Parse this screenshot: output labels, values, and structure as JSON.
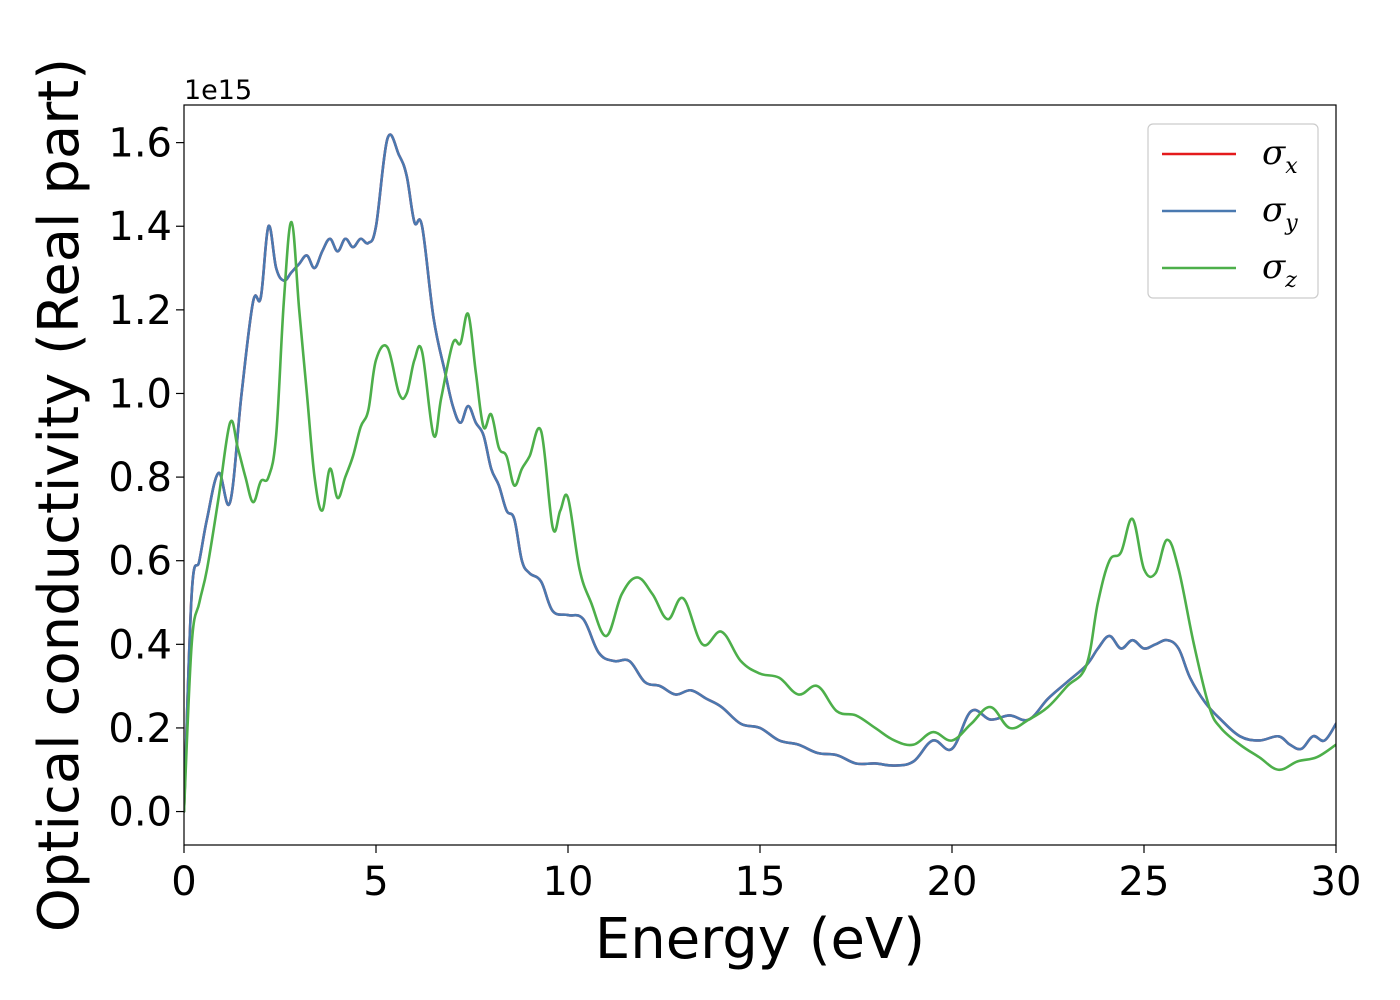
{
  "chart_data": {
    "type": "line",
    "xlabel": "Energy (eV)",
    "ylabel": "Optical conductivity (Real part)",
    "y_offset_label": "1e15",
    "y_scale": 1000000000000000.0,
    "xlim": [
      0,
      30
    ],
    "ylim": [
      -0.08,
      1.69
    ],
    "xticks": [
      0,
      5,
      10,
      15,
      20,
      25,
      30
    ],
    "xtick_labels": [
      "0",
      "5",
      "10",
      "15",
      "20",
      "25",
      "30"
    ],
    "yticks": [
      0.0,
      0.2,
      0.4,
      0.6,
      0.8,
      1.0,
      1.2,
      1.4,
      1.6
    ],
    "ytick_labels": [
      "0.0",
      "0.2",
      "0.4",
      "0.6",
      "0.8",
      "1.0",
      "1.2",
      "1.4",
      "1.6"
    ],
    "grid": false,
    "legend_position": "top-right",
    "series": [
      {
        "name": "σx",
        "legend_base": "σ",
        "legend_sub": "x",
        "color": "#e41a1c",
        "x": [
          0,
          0.2,
          0.4,
          0.6,
          0.9,
          1.2,
          1.5,
          1.8,
          2.0,
          2.2,
          2.4,
          2.6,
          2.8,
          3.0,
          3.2,
          3.4,
          3.6,
          3.8,
          4.0,
          4.2,
          4.4,
          4.6,
          4.8,
          5.0,
          5.3,
          5.6,
          5.8,
          6.0,
          6.2,
          6.5,
          6.8,
          7.0,
          7.2,
          7.4,
          7.6,
          7.8,
          8.0,
          8.2,
          8.4,
          8.6,
          8.8,
          9.0,
          9.3,
          9.6,
          10.0,
          10.4,
          10.8,
          11.2,
          11.6,
          12.0,
          12.4,
          12.8,
          13.2,
          13.6,
          14.0,
          14.5,
          15.0,
          15.5,
          16.0,
          16.5,
          17.0,
          17.5,
          18.0,
          18.5,
          19.0,
          19.5,
          20.0,
          20.5,
          21.0,
          21.5,
          22.0,
          22.5,
          23.0,
          23.5,
          23.8,
          24.1,
          24.4,
          24.7,
          25.0,
          25.3,
          25.6,
          25.9,
          26.2,
          26.6,
          27.0,
          27.5,
          28.0,
          28.5,
          28.8,
          29.1,
          29.4,
          29.7,
          30.0
        ],
        "y": [
          0.0,
          0.52,
          0.6,
          0.7,
          0.81,
          0.74,
          1.0,
          1.22,
          1.23,
          1.4,
          1.3,
          1.27,
          1.29,
          1.31,
          1.33,
          1.3,
          1.34,
          1.37,
          1.34,
          1.37,
          1.35,
          1.37,
          1.36,
          1.4,
          1.61,
          1.57,
          1.52,
          1.41,
          1.4,
          1.18,
          1.05,
          0.97,
          0.93,
          0.97,
          0.93,
          0.9,
          0.82,
          0.78,
          0.72,
          0.7,
          0.6,
          0.57,
          0.55,
          0.48,
          0.47,
          0.46,
          0.38,
          0.36,
          0.36,
          0.31,
          0.3,
          0.28,
          0.29,
          0.27,
          0.25,
          0.21,
          0.2,
          0.17,
          0.16,
          0.14,
          0.135,
          0.115,
          0.115,
          0.11,
          0.12,
          0.17,
          0.15,
          0.24,
          0.22,
          0.23,
          0.22,
          0.27,
          0.31,
          0.35,
          0.39,
          0.42,
          0.39,
          0.41,
          0.39,
          0.4,
          0.41,
          0.39,
          0.32,
          0.26,
          0.22,
          0.18,
          0.17,
          0.18,
          0.16,
          0.15,
          0.18,
          0.17,
          0.21
        ]
      },
      {
        "name": "σy",
        "legend_base": "σ",
        "legend_sub": "y",
        "color": "#4a79b0",
        "x": [
          0,
          0.2,
          0.4,
          0.6,
          0.9,
          1.2,
          1.5,
          1.8,
          2.0,
          2.2,
          2.4,
          2.6,
          2.8,
          3.0,
          3.2,
          3.4,
          3.6,
          3.8,
          4.0,
          4.2,
          4.4,
          4.6,
          4.8,
          5.0,
          5.3,
          5.6,
          5.8,
          6.0,
          6.2,
          6.5,
          6.8,
          7.0,
          7.2,
          7.4,
          7.6,
          7.8,
          8.0,
          8.2,
          8.4,
          8.6,
          8.8,
          9.0,
          9.3,
          9.6,
          10.0,
          10.4,
          10.8,
          11.2,
          11.6,
          12.0,
          12.4,
          12.8,
          13.2,
          13.6,
          14.0,
          14.5,
          15.0,
          15.5,
          16.0,
          16.5,
          17.0,
          17.5,
          18.0,
          18.5,
          19.0,
          19.5,
          20.0,
          20.5,
          21.0,
          21.5,
          22.0,
          22.5,
          23.0,
          23.5,
          23.8,
          24.1,
          24.4,
          24.7,
          25.0,
          25.3,
          25.6,
          25.9,
          26.2,
          26.6,
          27.0,
          27.5,
          28.0,
          28.5,
          28.8,
          29.1,
          29.4,
          29.7,
          30.0
        ],
        "y": [
          0.0,
          0.52,
          0.6,
          0.7,
          0.81,
          0.74,
          1.0,
          1.22,
          1.23,
          1.4,
          1.3,
          1.27,
          1.29,
          1.31,
          1.33,
          1.3,
          1.34,
          1.37,
          1.34,
          1.37,
          1.35,
          1.37,
          1.36,
          1.4,
          1.61,
          1.57,
          1.52,
          1.41,
          1.4,
          1.18,
          1.05,
          0.97,
          0.93,
          0.97,
          0.93,
          0.9,
          0.82,
          0.78,
          0.72,
          0.7,
          0.6,
          0.57,
          0.55,
          0.48,
          0.47,
          0.46,
          0.38,
          0.36,
          0.36,
          0.31,
          0.3,
          0.28,
          0.29,
          0.27,
          0.25,
          0.21,
          0.2,
          0.17,
          0.16,
          0.14,
          0.135,
          0.115,
          0.115,
          0.11,
          0.12,
          0.17,
          0.15,
          0.24,
          0.22,
          0.23,
          0.22,
          0.27,
          0.31,
          0.35,
          0.39,
          0.42,
          0.39,
          0.41,
          0.39,
          0.4,
          0.41,
          0.39,
          0.32,
          0.26,
          0.22,
          0.18,
          0.17,
          0.18,
          0.16,
          0.15,
          0.18,
          0.17,
          0.21
        ]
      },
      {
        "name": "σz",
        "legend_base": "σ",
        "legend_sub": "z",
        "color": "#4daf4a",
        "x": [
          0,
          0.2,
          0.4,
          0.6,
          0.9,
          1.2,
          1.4,
          1.6,
          1.8,
          2.0,
          2.2,
          2.4,
          2.6,
          2.8,
          3.0,
          3.2,
          3.4,
          3.6,
          3.8,
          4.0,
          4.2,
          4.4,
          4.6,
          4.8,
          5.0,
          5.3,
          5.6,
          5.8,
          6.0,
          6.2,
          6.5,
          6.7,
          7.0,
          7.2,
          7.4,
          7.6,
          7.8,
          8.0,
          8.2,
          8.4,
          8.6,
          8.8,
          9.0,
          9.3,
          9.6,
          9.8,
          10.0,
          10.3,
          10.6,
          11.0,
          11.4,
          11.8,
          12.2,
          12.6,
          13.0,
          13.5,
          14.0,
          14.5,
          15.0,
          15.5,
          16.0,
          16.5,
          17.0,
          17.5,
          18.0,
          18.5,
          19.0,
          19.5,
          20.0,
          20.5,
          21.0,
          21.5,
          22.0,
          22.5,
          23.0,
          23.5,
          23.8,
          24.1,
          24.4,
          24.7,
          25.0,
          25.3,
          25.6,
          25.9,
          26.3,
          26.7,
          27.0,
          27.5,
          28.0,
          28.5,
          29.0,
          29.5,
          30.0
        ],
        "y": [
          0.0,
          0.4,
          0.5,
          0.58,
          0.75,
          0.93,
          0.87,
          0.8,
          0.74,
          0.79,
          0.8,
          0.9,
          1.22,
          1.41,
          1.2,
          1.0,
          0.8,
          0.72,
          0.82,
          0.75,
          0.8,
          0.85,
          0.92,
          0.96,
          1.08,
          1.11,
          1.0,
          1.0,
          1.08,
          1.1,
          0.9,
          0.99,
          1.12,
          1.12,
          1.19,
          1.05,
          0.92,
          0.95,
          0.87,
          0.85,
          0.78,
          0.82,
          0.85,
          0.91,
          0.68,
          0.72,
          0.75,
          0.58,
          0.5,
          0.42,
          0.52,
          0.56,
          0.52,
          0.46,
          0.51,
          0.4,
          0.43,
          0.36,
          0.33,
          0.32,
          0.28,
          0.3,
          0.24,
          0.23,
          0.2,
          0.17,
          0.16,
          0.19,
          0.17,
          0.21,
          0.25,
          0.2,
          0.22,
          0.25,
          0.3,
          0.35,
          0.5,
          0.6,
          0.62,
          0.7,
          0.58,
          0.57,
          0.65,
          0.58,
          0.4,
          0.25,
          0.2,
          0.16,
          0.13,
          0.1,
          0.12,
          0.13,
          0.16
        ]
      }
    ]
  }
}
